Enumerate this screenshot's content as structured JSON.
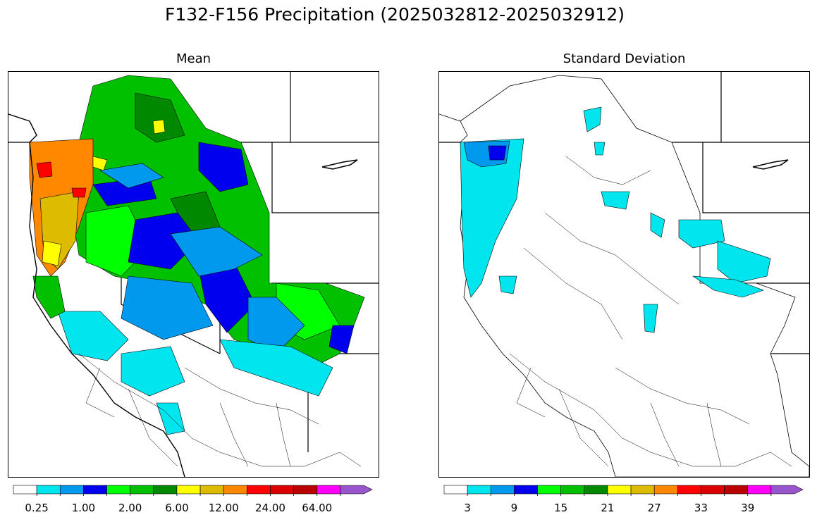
{
  "title": "F132-F156 Precipitation (2025032812-2025032912)",
  "panels": [
    {
      "id": "mean",
      "title": "Mean",
      "colorbar": {
        "colors": [
          "#ffffff",
          "#00e5ee",
          "#0099ee",
          "#0000ee",
          "#00ff00",
          "#00c000",
          "#008800",
          "#ffff00",
          "#ddbb00",
          "#ff8800",
          "#ff0000",
          "#dd0000",
          "#bb0000",
          "#ff00ff",
          "#9955cc"
        ],
        "tick_labels": [
          "0.25",
          "1.00",
          "2.00",
          "6.00",
          "12.00",
          "24.00",
          "64.00"
        ],
        "extend": "max"
      }
    },
    {
      "id": "stdev",
      "title": "Standard Deviation",
      "colorbar": {
        "colors": [
          "#ffffff",
          "#00e5ee",
          "#0099ee",
          "#0000ee",
          "#00ff00",
          "#00c000",
          "#008800",
          "#ffff00",
          "#ddbb00",
          "#ff8800",
          "#ff0000",
          "#dd0000",
          "#bb0000",
          "#ff00ff",
          "#9955cc"
        ],
        "tick_labels": [
          "3",
          "9",
          "15",
          "21",
          "27",
          "33",
          "39"
        ],
        "extend": "max"
      }
    }
  ]
}
